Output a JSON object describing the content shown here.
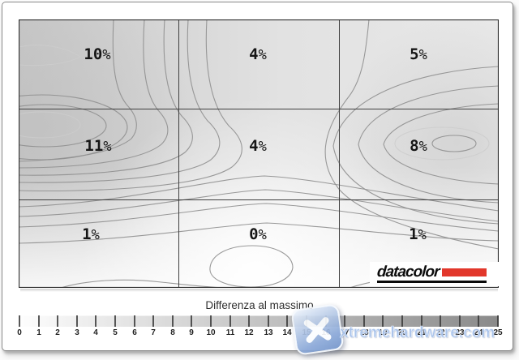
{
  "chart_data": {
    "type": "heatmap",
    "subtype": "contour-uniformity-map",
    "title": "Differenza al massimo",
    "unit": "%",
    "grid": {
      "rows": 3,
      "cols": 3,
      "gridlines": true
    },
    "rows": [
      "top",
      "middle",
      "bottom"
    ],
    "cols": [
      "left",
      "center",
      "right"
    ],
    "values": [
      [
        10,
        4,
        5
      ],
      [
        11,
        4,
        8
      ],
      [
        1,
        0,
        1
      ]
    ],
    "cell_labels": [
      "10",
      "4",
      "5",
      "11",
      "4",
      "8",
      "1",
      "0",
      "1"
    ],
    "scale": {
      "min": 0,
      "max": 25,
      "ticks": [
        "0",
        "1",
        "2",
        "3",
        "4",
        "5",
        "6",
        "7",
        "8",
        "9",
        "10",
        "11",
        "12",
        "13",
        "14",
        "15",
        "16",
        "17",
        "18",
        "19",
        "20",
        "21",
        "22",
        "23",
        "24",
        "25"
      ],
      "gradient": [
        "#ffffff",
        "#8a8a8a"
      ],
      "position": "bottom"
    }
  },
  "branding": {
    "logo_text": "datacolor",
    "logo_accent_color": "#e2372b"
  },
  "watermark": {
    "text": "xtremehardware.com",
    "color": "#a8c2ea"
  }
}
